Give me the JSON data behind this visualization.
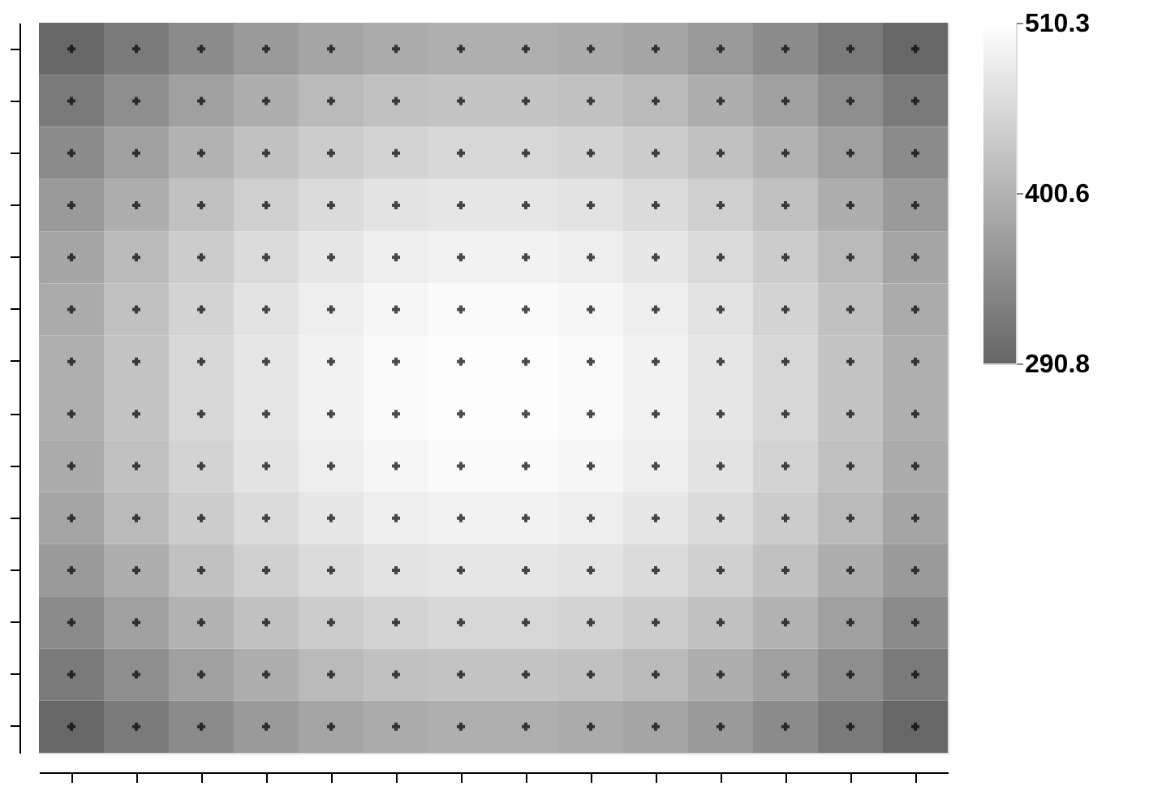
{
  "chart_data": {
    "type": "heatmap",
    "categories": [
      null,
      null,
      null,
      null,
      null,
      null,
      null,
      null,
      null,
      null,
      null,
      null,
      null,
      null
    ],
    "y_categories": [
      null,
      null,
      null,
      null,
      null,
      null,
      null,
      null,
      null,
      null,
      null,
      null,
      null,
      null
    ],
    "cells": [
      [
        292,
        322,
        348,
        369,
        385,
        395,
        400,
        400,
        395,
        385,
        369,
        348,
        322,
        292
      ],
      [
        322,
        352,
        378,
        399,
        415,
        425,
        430,
        430,
        425,
        415,
        399,
        378,
        352,
        322
      ],
      [
        348,
        378,
        404,
        425,
        441,
        451,
        456,
        456,
        451,
        441,
        425,
        404,
        378,
        348
      ],
      [
        369,
        399,
        425,
        446,
        462,
        472,
        477,
        477,
        472,
        462,
        446,
        425,
        399,
        369
      ],
      [
        385,
        415,
        441,
        462,
        478,
        488,
        493,
        493,
        488,
        478,
        462,
        441,
        415,
        385
      ],
      [
        395,
        425,
        451,
        472,
        488,
        498,
        503,
        503,
        498,
        488,
        472,
        451,
        425,
        395
      ],
      [
        400,
        430,
        456,
        477,
        493,
        503,
        508,
        508,
        503,
        493,
        477,
        456,
        430,
        400
      ],
      [
        400,
        430,
        456,
        477,
        493,
        503,
        508,
        508,
        503,
        493,
        477,
        456,
        430,
        400
      ],
      [
        395,
        425,
        451,
        472,
        488,
        498,
        503,
        503,
        498,
        488,
        472,
        451,
        425,
        395
      ],
      [
        385,
        415,
        441,
        462,
        478,
        488,
        493,
        493,
        488,
        478,
        462,
        441,
        415,
        385
      ],
      [
        369,
        399,
        425,
        446,
        462,
        472,
        477,
        477,
        472,
        462,
        446,
        425,
        399,
        369
      ],
      [
        348,
        378,
        404,
        425,
        441,
        451,
        456,
        456,
        451,
        441,
        425,
        404,
        378,
        348
      ],
      [
        322,
        352,
        378,
        399,
        415,
        425,
        430,
        430,
        425,
        415,
        399,
        378,
        352,
        322
      ],
      [
        292,
        322,
        348,
        369,
        385,
        395,
        400,
        400,
        395,
        385,
        369,
        348,
        322,
        292
      ]
    ],
    "clim": [
      290.8,
      510.3
    ],
    "cticks": [
      290.8,
      400.6,
      510.3
    ],
    "colors": [
      "#666666",
      "#ffffff"
    ],
    "marker": "cross",
    "tick_labels": false
  }
}
